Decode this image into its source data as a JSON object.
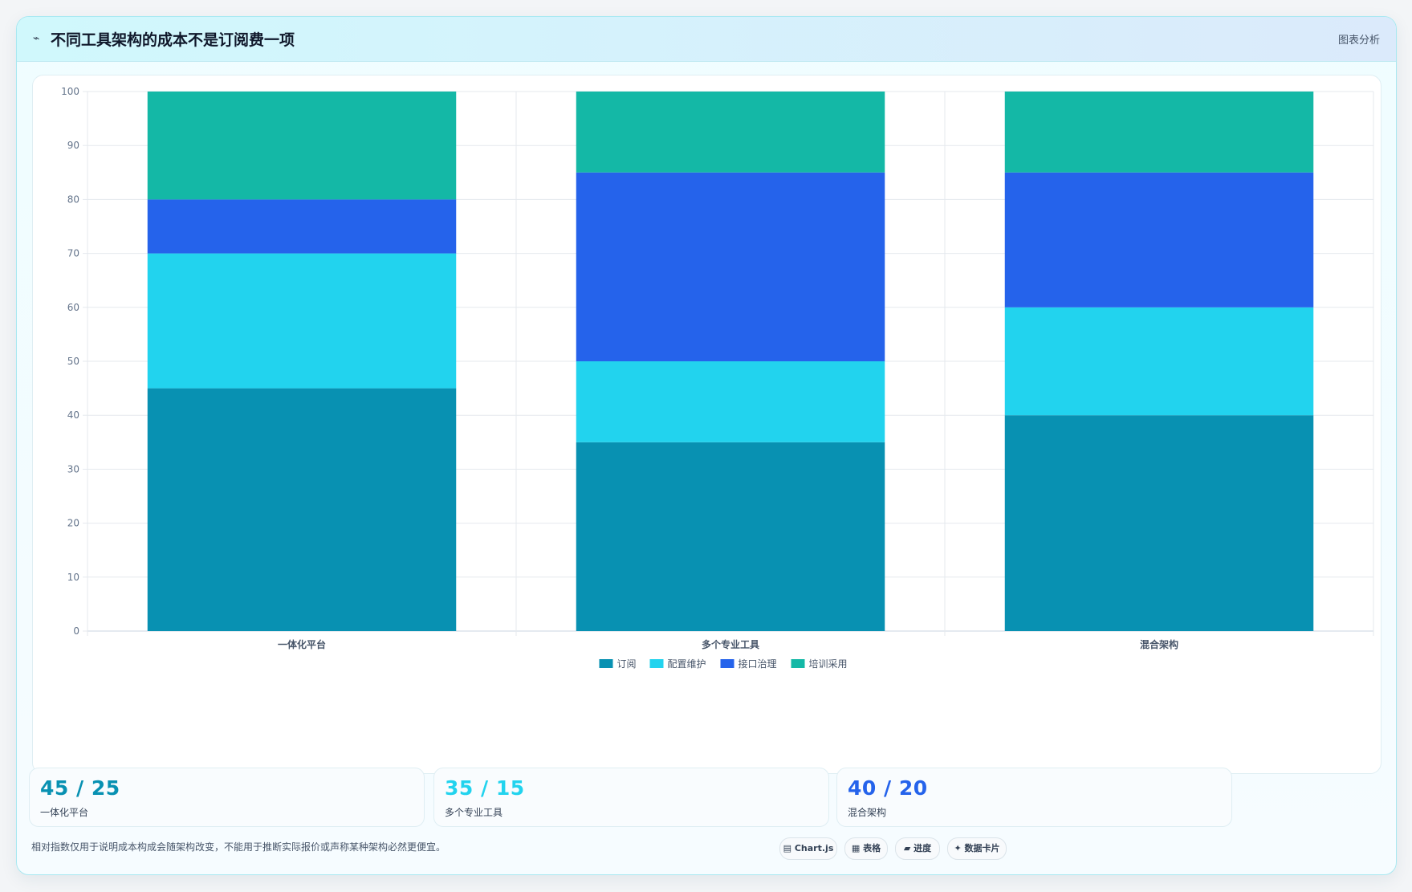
{
  "header": {
    "icon": "line-chart-icon",
    "title": "不同工具架构的成本不是订阅费一项",
    "tag": "图表分析"
  },
  "chart_data": {
    "type": "bar",
    "stacked": true,
    "categories": [
      "一体化平台",
      "多个专业工具",
      "混合架构"
    ],
    "series": [
      {
        "name": "订阅",
        "color": "#0891b2",
        "values": [
          45,
          35,
          40
        ]
      },
      {
        "name": "配置维护",
        "color": "#22d3ee",
        "values": [
          25,
          15,
          20
        ]
      },
      {
        "name": "接口治理",
        "color": "#2563eb",
        "values": [
          10,
          35,
          25
        ]
      },
      {
        "name": "培训采用",
        "color": "#14b8a6",
        "values": [
          20,
          15,
          15
        ]
      }
    ],
    "ylim": [
      0,
      100
    ],
    "yticks": [
      "0",
      "10",
      "20",
      "30",
      "40",
      "50",
      "60",
      "70",
      "80",
      "90",
      "100"
    ],
    "grid": true,
    "legend_position": "bottom"
  },
  "stats": [
    {
      "value": "45 / 25",
      "label": "一体化平台",
      "color": "#0891b2"
    },
    {
      "value": "35 / 15",
      "label": "多个专业工具",
      "color": "#22d3ee"
    },
    {
      "value": "40 / 20",
      "label": "混合架构",
      "color": "#2563eb"
    }
  ],
  "footnote": "相对指数仅用于说明成本构成会随架构改变，不能用于推断实际报价或声称某种架构必然更便宜。",
  "pills": [
    {
      "icon": "chart-icon",
      "glyph": "▤",
      "label": "Chart.js"
    },
    {
      "icon": "table-icon",
      "glyph": "▦",
      "label": "表格"
    },
    {
      "icon": "progress-icon",
      "glyph": "▰",
      "label": "进度"
    },
    {
      "icon": "card-icon",
      "glyph": "✦",
      "label": "数据卡片"
    }
  ]
}
